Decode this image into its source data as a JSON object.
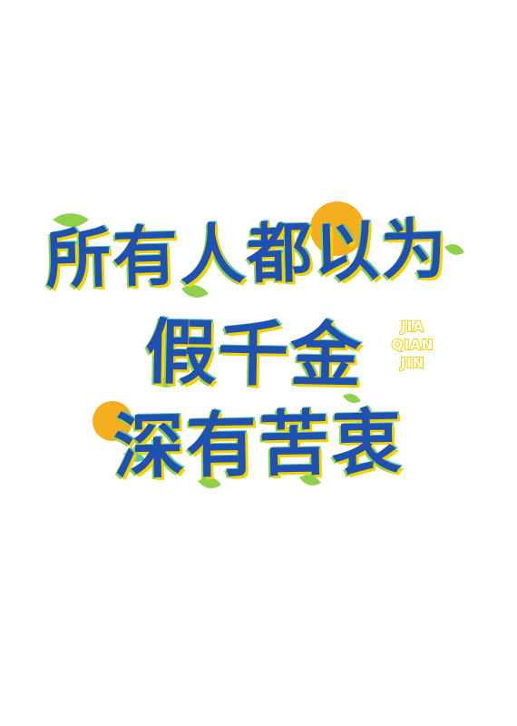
{
  "title": {
    "line1": "所有人都以为",
    "line2": "假千金",
    "line3": "深有苦衷"
  },
  "pinyin": {
    "line1": "JIA",
    "line2": "QIAN",
    "line3": "JIN"
  },
  "colors": {
    "background": "#ffffff",
    "text_blue": "#1f52b0",
    "accent_yellow": "#f2d200",
    "accent_green": "#8fd14b",
    "sun_orange": "#f4ae1e"
  }
}
